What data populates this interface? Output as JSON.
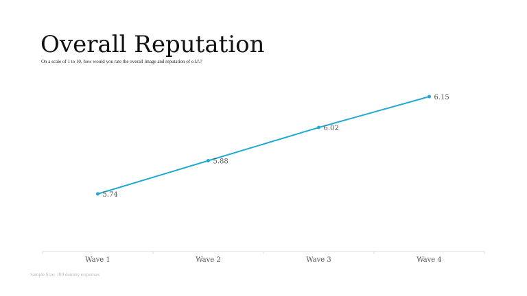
{
  "chart_data": {
    "type": "line",
    "title": "Overall Reputation",
    "subtitle": "On a scale of 1 to 10, how would you rate the overall image and reputation of e.l.f.?",
    "note": "Sample Size: 100 dummy responses",
    "categories": [
      "Wave 1",
      "Wave 2",
      "Wave 3",
      "Wave 4"
    ],
    "series": [
      {
        "color": "#1fa9d4",
        "values": [
          5.74,
          5.88,
          6.02,
          6.15
        ]
      }
    ]
  }
}
